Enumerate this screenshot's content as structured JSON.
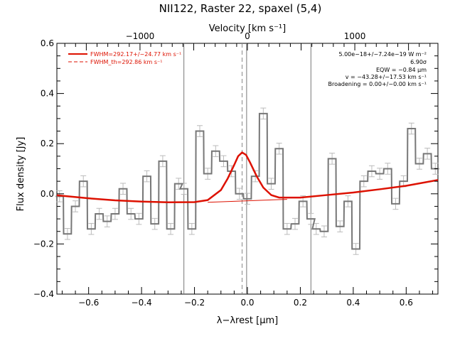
{
  "chart_data": {
    "type": "line",
    "title": "NII122, Raster 22, spaxel (5,4)",
    "xlabel": "λ−λrest [μm]",
    "ylabel": "Flux density [Jy]",
    "top_axis_label": "Velocity [km s⁻¹]",
    "xlim": [
      -0.72,
      0.72
    ],
    "ylim": [
      -0.4,
      0.6
    ],
    "top_xlim": [
      -1774,
      1774
    ],
    "x_ticks": [
      -0.6,
      -0.4,
      -0.2,
      0.0,
      0.2,
      0.4,
      0.6
    ],
    "x_tick_labels": [
      "−0.6",
      "−0.4",
      "−0.2",
      "0.0",
      "0.2",
      "0.4",
      "0.6"
    ],
    "y_ticks": [
      -0.4,
      -0.2,
      0.0,
      0.2,
      0.4,
      0.6
    ],
    "y_tick_labels": [
      "−0.4",
      "−0.2",
      "0.0",
      "0.2",
      "0.4",
      "0.6"
    ],
    "top_ticks": [
      -1000,
      0,
      1000
    ],
    "top_tick_labels": [
      "−1000",
      "0",
      "1000"
    ],
    "vlines": [
      -0.24,
      -0.003,
      0.24
    ],
    "dashed_vline": -0.02,
    "legend_placement": "top-left",
    "legend": [
      {
        "label": "FWHM=292.17+/−24.77 km s⁻¹",
        "style": "solid"
      },
      {
        "label": "FWHM_th=292.86 km s⁻¹",
        "style": "dashed"
      }
    ],
    "annotations": [
      "5.00e−18+/−7.24e−19 W m⁻²",
      "6.90σ",
      "EQW = −0.84 μm",
      "v = −43.28+/−17.53 km s⁻¹",
      "Broadening = 0.00+/−0.00 km s⁻¹"
    ],
    "series": [
      {
        "kind": "step",
        "bin_width": 0.029,
        "x": [
          -0.71,
          -0.68,
          -0.65,
          -0.62,
          -0.59,
          -0.56,
          -0.53,
          -0.5,
          -0.47,
          -0.44,
          -0.41,
          -0.38,
          -0.35,
          -0.32,
          -0.29,
          -0.26,
          -0.24,
          -0.21,
          -0.18,
          -0.15,
          -0.12,
          -0.09,
          -0.06,
          -0.03,
          0.0,
          0.03,
          0.06,
          0.09,
          0.12,
          0.15,
          0.18,
          0.21,
          0.24,
          0.26,
          0.29,
          0.32,
          0.35,
          0.38,
          0.41,
          0.44,
          0.47,
          0.5,
          0.53,
          0.56,
          0.59,
          0.62,
          0.65,
          0.68,
          0.71
        ],
        "y": [
          -0.01,
          -0.16,
          -0.05,
          0.05,
          -0.14,
          -0.08,
          -0.11,
          -0.08,
          0.02,
          -0.08,
          -0.1,
          0.07,
          -0.12,
          0.13,
          -0.14,
          0.04,
          0.02,
          -0.14,
          0.25,
          0.08,
          0.17,
          0.13,
          0.09,
          0.0,
          -0.02,
          0.07,
          0.32,
          0.04,
          0.18,
          -0.14,
          -0.12,
          -0.03,
          -0.1,
          -0.14,
          -0.15,
          0.14,
          -0.13,
          -0.03,
          -0.22,
          0.05,
          0.09,
          0.08,
          0.1,
          -0.04,
          0.05,
          0.26,
          0.12,
          0.16,
          0.1
        ]
      },
      {
        "kind": "fit",
        "x": [
          -0.72,
          -0.6,
          -0.5,
          -0.4,
          -0.3,
          -0.2,
          -0.15,
          -0.1,
          -0.075,
          -0.05,
          -0.035,
          -0.02,
          -0.005,
          0.01,
          0.035,
          0.06,
          0.09,
          0.12,
          0.2,
          0.3,
          0.4,
          0.5,
          0.6,
          0.72
        ],
        "y": [
          -0.006,
          -0.018,
          -0.026,
          -0.031,
          -0.034,
          -0.033,
          -0.025,
          0.015,
          0.06,
          0.115,
          0.15,
          0.165,
          0.155,
          0.125,
          0.07,
          0.025,
          -0.005,
          -0.015,
          -0.015,
          -0.005,
          0.005,
          0.018,
          0.032,
          0.055
        ]
      },
      {
        "kind": "baseline",
        "x": [
          -0.15,
          0.15
        ],
        "y": [
          -0.034,
          -0.022
        ]
      }
    ]
  }
}
